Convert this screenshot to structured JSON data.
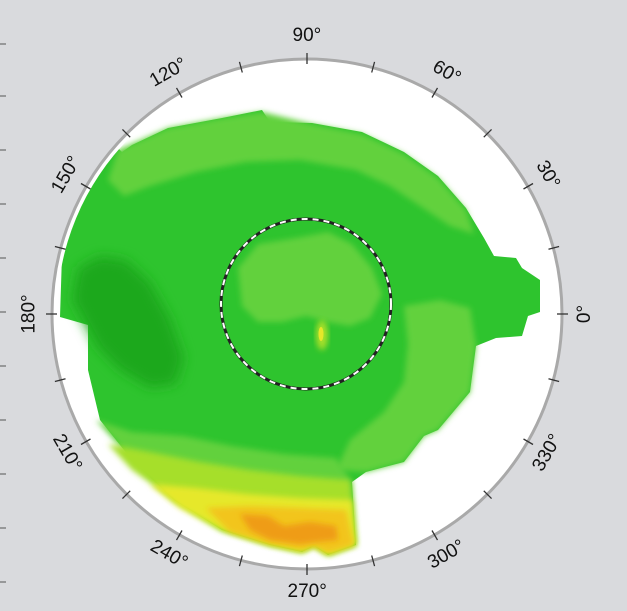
{
  "polar_map": {
    "angle_labels": [
      {
        "id": "deg-0",
        "text": "0°",
        "angle": 0
      },
      {
        "id": "deg-30",
        "text": "30°",
        "angle": 30
      },
      {
        "id": "deg-60",
        "text": "60°",
        "angle": 60
      },
      {
        "id": "deg-90",
        "text": "90°",
        "angle": 90
      },
      {
        "id": "deg-120",
        "text": "120°",
        "angle": 120
      },
      {
        "id": "deg-150",
        "text": "150°",
        "angle": 150
      },
      {
        "id": "deg-180",
        "text": "180°",
        "angle": 180
      },
      {
        "id": "deg-210",
        "text": "210°",
        "angle": 210
      },
      {
        "id": "deg-240",
        "text": "240°",
        "angle": 240
      },
      {
        "id": "deg-270",
        "text": "270°",
        "angle": 270
      },
      {
        "id": "deg-300",
        "text": "300°",
        "angle": 300
      },
      {
        "id": "deg-330",
        "text": "330°",
        "angle": 330
      }
    ],
    "tick_step_degrees": 15,
    "colors": {
      "background": "#d9dadd",
      "disc": "#ffffff",
      "rim": "#a9a9a9",
      "green_dark": "#1ea81e",
      "green": "#2ec42e",
      "green_light": "#62d13e",
      "yellow_green": "#a6df2a",
      "yellow": "#e6e829",
      "orange": "#f2c51b",
      "deep_orange": "#ef9c12",
      "center_ring": "#222222"
    }
  }
}
